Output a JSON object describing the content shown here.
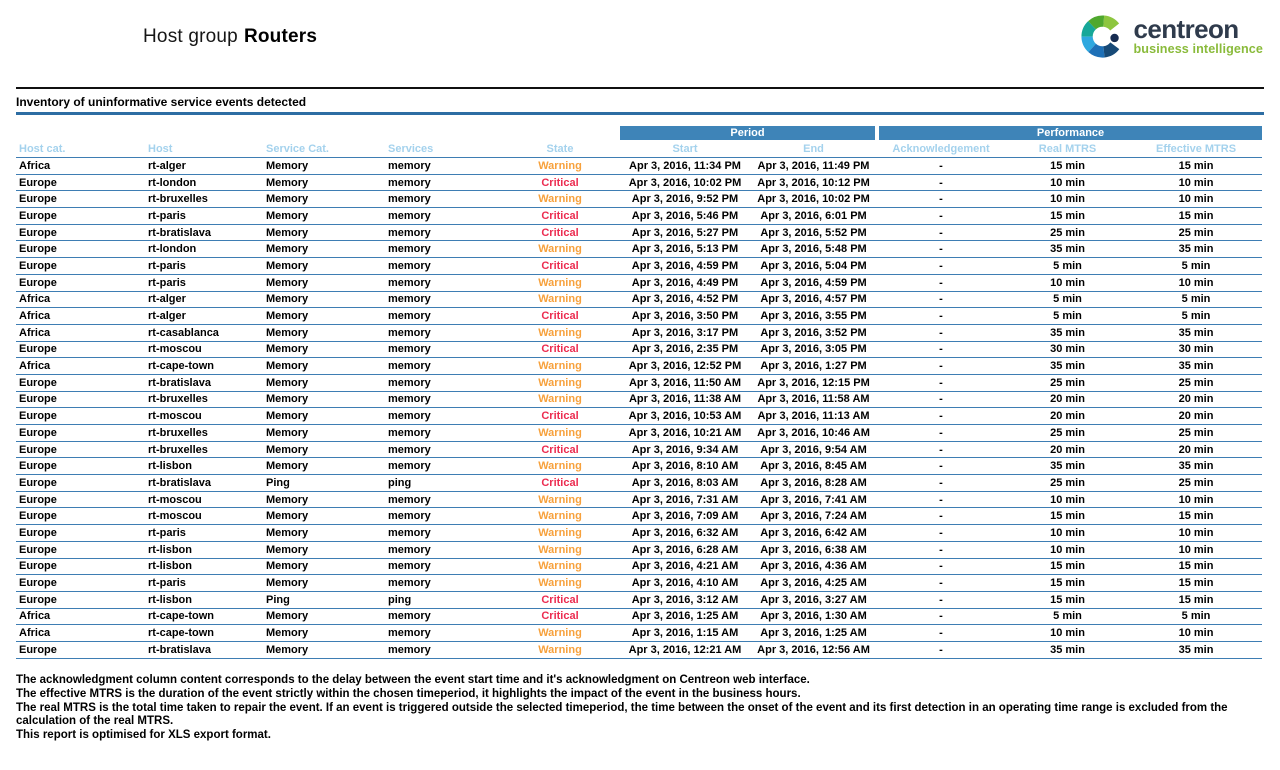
{
  "header": {
    "title_prefix": "Host group",
    "title_name": "Routers"
  },
  "logo": {
    "brand": "centreon",
    "tagline": "business intelligence"
  },
  "section_title": "Inventory of uninformative service events detected",
  "table": {
    "group_headers": {
      "period": "Period",
      "performance": "Performance"
    },
    "columns": [
      "Host cat.",
      "Host",
      "Service Cat.",
      "Services",
      "State",
      "Start",
      "End",
      "Acknowledgement",
      "Real MTRS",
      "Effective MTRS"
    ],
    "rows": [
      [
        "Africa",
        "rt-alger",
        "Memory",
        "memory",
        "Warning",
        "Apr 3, 2016, 11:34 PM",
        "Apr 3, 2016, 11:49 PM",
        "-",
        "15 min",
        "15 min"
      ],
      [
        "Europe",
        "rt-london",
        "Memory",
        "memory",
        "Critical",
        "Apr 3, 2016, 10:02 PM",
        "Apr 3, 2016, 10:12 PM",
        "-",
        "10 min",
        "10 min"
      ],
      [
        "Europe",
        "rt-bruxelles",
        "Memory",
        "memory",
        "Warning",
        "Apr 3, 2016, 9:52 PM",
        "Apr 3, 2016, 10:02 PM",
        "-",
        "10 min",
        "10 min"
      ],
      [
        "Europe",
        "rt-paris",
        "Memory",
        "memory",
        "Critical",
        "Apr 3, 2016, 5:46 PM",
        "Apr 3, 2016, 6:01 PM",
        "-",
        "15 min",
        "15 min"
      ],
      [
        "Europe",
        "rt-bratislava",
        "Memory",
        "memory",
        "Critical",
        "Apr 3, 2016, 5:27 PM",
        "Apr 3, 2016, 5:52 PM",
        "-",
        "25 min",
        "25 min"
      ],
      [
        "Europe",
        "rt-london",
        "Memory",
        "memory",
        "Warning",
        "Apr 3, 2016, 5:13 PM",
        "Apr 3, 2016, 5:48 PM",
        "-",
        "35 min",
        "35 min"
      ],
      [
        "Europe",
        "rt-paris",
        "Memory",
        "memory",
        "Critical",
        "Apr 3, 2016, 4:59 PM",
        "Apr 3, 2016, 5:04 PM",
        "-",
        "5 min",
        "5 min"
      ],
      [
        "Europe",
        "rt-paris",
        "Memory",
        "memory",
        "Warning",
        "Apr 3, 2016, 4:49 PM",
        "Apr 3, 2016, 4:59 PM",
        "-",
        "10 min",
        "10 min"
      ],
      [
        "Africa",
        "rt-alger",
        "Memory",
        "memory",
        "Warning",
        "Apr 3, 2016, 4:52 PM",
        "Apr 3, 2016, 4:57 PM",
        "-",
        "5 min",
        "5 min"
      ],
      [
        "Africa",
        "rt-alger",
        "Memory",
        "memory",
        "Critical",
        "Apr 3, 2016, 3:50 PM",
        "Apr 3, 2016, 3:55 PM",
        "-",
        "5 min",
        "5 min"
      ],
      [
        "Africa",
        "rt-casablanca",
        "Memory",
        "memory",
        "Warning",
        "Apr 3, 2016, 3:17 PM",
        "Apr 3, 2016, 3:52 PM",
        "-",
        "35 min",
        "35 min"
      ],
      [
        "Europe",
        "rt-moscou",
        "Memory",
        "memory",
        "Critical",
        "Apr 3, 2016, 2:35 PM",
        "Apr 3, 2016, 3:05 PM",
        "-",
        "30 min",
        "30 min"
      ],
      [
        "Africa",
        "rt-cape-town",
        "Memory",
        "memory",
        "Warning",
        "Apr 3, 2016, 12:52 PM",
        "Apr 3, 2016, 1:27 PM",
        "-",
        "35 min",
        "35 min"
      ],
      [
        "Europe",
        "rt-bratislava",
        "Memory",
        "memory",
        "Warning",
        "Apr 3, 2016, 11:50 AM",
        "Apr 3, 2016, 12:15 PM",
        "-",
        "25 min",
        "25 min"
      ],
      [
        "Europe",
        "rt-bruxelles",
        "Memory",
        "memory",
        "Warning",
        "Apr 3, 2016, 11:38 AM",
        "Apr 3, 2016, 11:58 AM",
        "-",
        "20 min",
        "20 min"
      ],
      [
        "Europe",
        "rt-moscou",
        "Memory",
        "memory",
        "Critical",
        "Apr 3, 2016, 10:53 AM",
        "Apr 3, 2016, 11:13 AM",
        "-",
        "20 min",
        "20 min"
      ],
      [
        "Europe",
        "rt-bruxelles",
        "Memory",
        "memory",
        "Warning",
        "Apr 3, 2016, 10:21 AM",
        "Apr 3, 2016, 10:46 AM",
        "-",
        "25 min",
        "25 min"
      ],
      [
        "Europe",
        "rt-bruxelles",
        "Memory",
        "memory",
        "Critical",
        "Apr 3, 2016, 9:34 AM",
        "Apr 3, 2016, 9:54 AM",
        "-",
        "20 min",
        "20 min"
      ],
      [
        "Europe",
        "rt-lisbon",
        "Memory",
        "memory",
        "Warning",
        "Apr 3, 2016, 8:10 AM",
        "Apr 3, 2016, 8:45 AM",
        "-",
        "35 min",
        "35 min"
      ],
      [
        "Europe",
        "rt-bratislava",
        "Ping",
        "ping",
        "Critical",
        "Apr 3, 2016, 8:03 AM",
        "Apr 3, 2016, 8:28 AM",
        "-",
        "25 min",
        "25 min"
      ],
      [
        "Europe",
        "rt-moscou",
        "Memory",
        "memory",
        "Warning",
        "Apr 3, 2016, 7:31 AM",
        "Apr 3, 2016, 7:41 AM",
        "-",
        "10 min",
        "10 min"
      ],
      [
        "Europe",
        "rt-moscou",
        "Memory",
        "memory",
        "Warning",
        "Apr 3, 2016, 7:09 AM",
        "Apr 3, 2016, 7:24 AM",
        "-",
        "15 min",
        "15 min"
      ],
      [
        "Europe",
        "rt-paris",
        "Memory",
        "memory",
        "Warning",
        "Apr 3, 2016, 6:32 AM",
        "Apr 3, 2016, 6:42 AM",
        "-",
        "10 min",
        "10 min"
      ],
      [
        "Europe",
        "rt-lisbon",
        "Memory",
        "memory",
        "Warning",
        "Apr 3, 2016, 6:28 AM",
        "Apr 3, 2016, 6:38 AM",
        "-",
        "10 min",
        "10 min"
      ],
      [
        "Europe",
        "rt-lisbon",
        "Memory",
        "memory",
        "Warning",
        "Apr 3, 2016, 4:21 AM",
        "Apr 3, 2016, 4:36 AM",
        "-",
        "15 min",
        "15 min"
      ],
      [
        "Europe",
        "rt-paris",
        "Memory",
        "memory",
        "Warning",
        "Apr 3, 2016, 4:10 AM",
        "Apr 3, 2016, 4:25 AM",
        "-",
        "15 min",
        "15 min"
      ],
      [
        "Europe",
        "rt-lisbon",
        "Ping",
        "ping",
        "Critical",
        "Apr 3, 2016, 3:12 AM",
        "Apr 3, 2016, 3:27 AM",
        "-",
        "15 min",
        "15 min"
      ],
      [
        "Africa",
        "rt-cape-town",
        "Memory",
        "memory",
        "Critical",
        "Apr 3, 2016, 1:25 AM",
        "Apr 3, 2016, 1:30 AM",
        "-",
        "5 min",
        "5 min"
      ],
      [
        "Africa",
        "rt-cape-town",
        "Memory",
        "memory",
        "Warning",
        "Apr 3, 2016, 1:15 AM",
        "Apr 3, 2016, 1:25 AM",
        "-",
        "10 min",
        "10 min"
      ],
      [
        "Europe",
        "rt-bratislava",
        "Memory",
        "memory",
        "Warning",
        "Apr 3, 2016, 12:21 AM",
        "Apr 3, 2016, 12:56 AM",
        "-",
        "35 min",
        "35 min"
      ]
    ]
  },
  "footnotes": [
    "The acknowledgment column content corresponds to the delay between the event start time and it's acknowledgment on Centreon web interface.",
    "The effective MTRS is the duration of the event strictly within the chosen timeperiod, it highlights the impact of the event in the business hours.",
    "The real MTRS is the total time taken to repair the event. If an event is triggered outside the selected timeperiod, the time between the onset of the event and its first detection in an operating time range is excluded from the calculation of the real MTRS.",
    "This report is optimised for XLS export format."
  ],
  "colors": {
    "band_blue": "#3E84B8",
    "column_header_text": "#A4D2ED",
    "row_divider": "#3E7DB3",
    "section_underline": "#2D6DA3",
    "state": {
      "Warning": "#F7A13C",
      "Critical": "#EC2C50"
    },
    "brand_text": "#2F3B4C",
    "brand_tagline": "#8ABB3B",
    "logo_segments": [
      "#8DC63F",
      "#4FA82E",
      "#16A798",
      "#2EA8DF",
      "#1E70B7",
      "#174A77"
    ],
    "logo_dot": "#162C50"
  }
}
